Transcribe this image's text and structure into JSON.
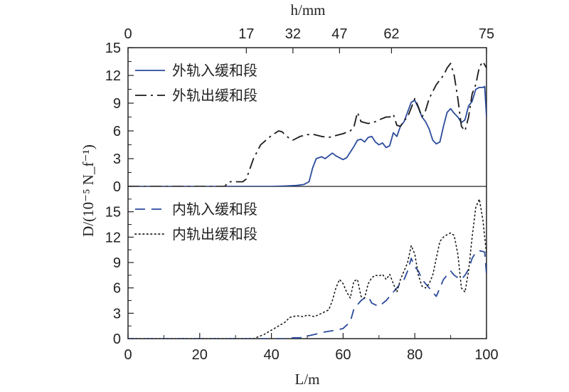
{
  "chart_data": {
    "type": "line",
    "ylabel": "D/(10⁻⁵ N_f⁻¹)",
    "top_axis": {
      "label": "h/mm",
      "ticks": [
        {
          "label": "0",
          "at_L": 0
        },
        {
          "label": "17",
          "at_L": 33
        },
        {
          "label": "32",
          "at_L": 46
        },
        {
          "label": "47",
          "at_L": 59
        },
        {
          "label": "62",
          "at_L": 73.5
        },
        {
          "label": "75",
          "at_L": 100
        }
      ]
    },
    "x_axis": {
      "label": "L/m",
      "range": [
        0,
        100
      ],
      "ticks": [
        "0",
        "20",
        "40",
        "60",
        "80",
        "100"
      ]
    },
    "panels": [
      {
        "position": "upper",
        "ylim": [
          0,
          15
        ],
        "yticks": [
          "0",
          "3",
          "6",
          "9",
          "12",
          "15"
        ],
        "legend_position": "top-left",
        "series": [
          {
            "name": "外轨入缓和段",
            "color": "#2a4a9c",
            "style": "solid",
            "points": [
              [
                0,
                0
              ],
              [
                20,
                0
              ],
              [
                40,
                0
              ],
              [
                44,
                0.05
              ],
              [
                47,
                0.1
              ],
              [
                49,
                0.2
              ],
              [
                50.5,
                0.5
              ],
              [
                51.5,
                2.0
              ],
              [
                52.5,
                3.0
              ],
              [
                54,
                3.2
              ],
              [
                55,
                3.0
              ],
              [
                57,
                3.6
              ],
              [
                58,
                3.3
              ],
              [
                60,
                2.9
              ],
              [
                61,
                3.1
              ],
              [
                63,
                4.3
              ],
              [
                64,
                5.0
              ],
              [
                65,
                5.1
              ],
              [
                66,
                4.8
              ],
              [
                67,
                5.3
              ],
              [
                68,
                5.4
              ],
              [
                69,
                4.8
              ],
              [
                70,
                4.5
              ],
              [
                71,
                4.7
              ],
              [
                72,
                4.2
              ],
              [
                73,
                4.4
              ],
              [
                74,
                5.8
              ],
              [
                75,
                5.4
              ],
              [
                76,
                6.5
              ],
              [
                77,
                7.0
              ],
              [
                79,
                9.1
              ],
              [
                80,
                9.3
              ],
              [
                81,
                8.5
              ],
              [
                82,
                7.5
              ],
              [
                83,
                7.0
              ],
              [
                84,
                6.2
              ],
              [
                85,
                5.0
              ],
              [
                86,
                4.6
              ],
              [
                87,
                4.8
              ],
              [
                88,
                6.5
              ],
              [
                89,
                8.0
              ],
              [
                90,
                8.4
              ],
              [
                91,
                7.9
              ],
              [
                92,
                7.5
              ],
              [
                93,
                6.9
              ],
              [
                94,
                7.2
              ],
              [
                95,
                8.7
              ],
              [
                96,
                9.2
              ],
              [
                97,
                10.5
              ],
              [
                98,
                10.7
              ],
              [
                99,
                10.7
              ],
              [
                99.5,
                10.8
              ],
              [
                100,
                7.5
              ]
            ]
          },
          {
            "name": "外轨出缓和段",
            "color": "#1a1a1a",
            "style": "dashdot",
            "points": [
              [
                0,
                0
              ],
              [
                27,
                0
              ],
              [
                28,
                0.5
              ],
              [
                32,
                0.5
              ],
              [
                33,
                0.8
              ],
              [
                35,
                3.0
              ],
              [
                37,
                4.5
              ],
              [
                40,
                5.5
              ],
              [
                42,
                6.0
              ],
              [
                43,
                5.9
              ],
              [
                44,
                5.5
              ],
              [
                45,
                5.2
              ],
              [
                46,
                5.0
              ],
              [
                48,
                5.4
              ],
              [
                50,
                5.6
              ],
              [
                52,
                5.6
              ],
              [
                54,
                5.4
              ],
              [
                56,
                5.3
              ],
              [
                58,
                5.5
              ],
              [
                60,
                5.7
              ],
              [
                62,
                6.0
              ],
              [
                63,
                6.4
              ],
              [
                64,
                8.0
              ],
              [
                65,
                7.0
              ],
              [
                67,
                6.8
              ],
              [
                69,
                7.0
              ],
              [
                70,
                7.2
              ],
              [
                72,
                7.5
              ],
              [
                73,
                7.5
              ],
              [
                74,
                7.8
              ],
              [
                75,
                6.6
              ],
              [
                76,
                6.5
              ],
              [
                77,
                7.1
              ],
              [
                78,
                7.5
              ],
              [
                79,
                8.5
              ],
              [
                80,
                9.5
              ],
              [
                81,
                8.6
              ],
              [
                82,
                7.5
              ],
              [
                83,
                8.2
              ],
              [
                84,
                9.5
              ],
              [
                86,
                11.0
              ],
              [
                88,
                12.0
              ],
              [
                89,
                12.8
              ],
              [
                90,
                13.3
              ],
              [
                91,
                12.0
              ],
              [
                92,
                9.5
              ],
              [
                93,
                6.5
              ],
              [
                94,
                6.0
              ],
              [
                95,
                7.5
              ],
              [
                96,
                10.0
              ],
              [
                97,
                11.0
              ],
              [
                98,
                12.9
              ],
              [
                99,
                13.5
              ],
              [
                100,
                12.8
              ]
            ]
          }
        ]
      },
      {
        "position": "lower",
        "ylim": [
          0,
          18
        ],
        "yticks": [
          "0",
          "3",
          "6",
          "9",
          "12",
          "15"
        ],
        "legend_position": "top-left",
        "series": [
          {
            "name": "内轨入缓和段",
            "color": "#2a4a9c",
            "style": "dashed",
            "points": [
              [
                0,
                0
              ],
              [
                40,
                0
              ],
              [
                45,
                0
              ],
              [
                46,
                0.1
              ],
              [
                48,
                0.1
              ],
              [
                50,
                0.3
              ],
              [
                52,
                0.5
              ],
              [
                55,
                0.8
              ],
              [
                58,
                1.0
              ],
              [
                60,
                1.2
              ],
              [
                62,
                2.0
              ],
              [
                63,
                3.5
              ],
              [
                65,
                4.5
              ],
              [
                66,
                4.8
              ],
              [
                67,
                5.0
              ],
              [
                68,
                4.2
              ],
              [
                70,
                3.8
              ],
              [
                72,
                4.5
              ],
              [
                74,
                5.5
              ],
              [
                76,
                6.5
              ],
              [
                77,
                7.0
              ],
              [
                78,
                8.0
              ],
              [
                79,
                9.5
              ],
              [
                80,
                8.5
              ],
              [
                81,
                8.0
              ],
              [
                82,
                7.0
              ],
              [
                83,
                6.5
              ],
              [
                84,
                6.0
              ],
              [
                85,
                5.5
              ],
              [
                86,
                5.0
              ],
              [
                87,
                6.0
              ],
              [
                88,
                7.0
              ],
              [
                89,
                7.5
              ],
              [
                90,
                8.0
              ],
              [
                91,
                7.5
              ],
              [
                92,
                7.2
              ],
              [
                93,
                7.0
              ],
              [
                94,
                7.5
              ],
              [
                95,
                8.2
              ],
              [
                96,
                9.5
              ],
              [
                97,
                10.2
              ],
              [
                98,
                10.4
              ],
              [
                99,
                10.3
              ],
              [
                99.5,
                10.2
              ],
              [
                100,
                7.6
              ]
            ]
          },
          {
            "name": "内轨出缓和段",
            "color": "#1a1a1a",
            "style": "dotted",
            "points": [
              [
                0,
                0
              ],
              [
                30,
                0
              ],
              [
                35,
                0
              ],
              [
                38,
                0.5
              ],
              [
                40,
                1.0
              ],
              [
                42,
                1.5
              ],
              [
                44,
                2.0
              ],
              [
                45,
                2.5
              ],
              [
                47,
                2.7
              ],
              [
                49,
                2.6
              ],
              [
                50,
                2.8
              ],
              [
                52,
                2.6
              ],
              [
                54,
                3.0
              ],
              [
                56,
                3.4
              ],
              [
                57,
                4.5
              ],
              [
                58,
                6.0
              ],
              [
                59,
                7.0
              ],
              [
                60,
                6.5
              ],
              [
                61,
                5.5
              ],
              [
                62,
                4.8
              ],
              [
                63,
                6.8
              ],
              [
                64,
                7.0
              ],
              [
                65,
                5.0
              ],
              [
                66,
                4.8
              ],
              [
                67,
                6.5
              ],
              [
                68,
                7.2
              ],
              [
                69,
                7.5
              ],
              [
                70,
                7.4
              ],
              [
                71,
                7.6
              ],
              [
                72,
                7.0
              ],
              [
                73,
                7.6
              ],
              [
                74,
                6.5
              ],
              [
                75,
                5.5
              ],
              [
                76,
                7.0
              ],
              [
                77,
                8.0
              ],
              [
                78,
                9.0
              ],
              [
                79,
                11.0
              ],
              [
                80,
                10.0
              ],
              [
                81,
                7.5
              ],
              [
                82,
                6.2
              ],
              [
                83,
                6.0
              ],
              [
                84,
                6.5
              ],
              [
                85,
                7.5
              ],
              [
                86,
                9.5
              ],
              [
                87,
                11.5
              ],
              [
                88,
                12.0
              ],
              [
                89,
                12.3
              ],
              [
                90,
                12.5
              ],
              [
                91,
                12.2
              ],
              [
                92,
                10.0
              ],
              [
                93,
                6.0
              ],
              [
                94,
                5.5
              ],
              [
                95,
                8.0
              ],
              [
                96,
                12.0
              ],
              [
                97,
                15.5
              ],
              [
                98,
                16.5
              ],
              [
                99,
                14.0
              ],
              [
                100,
                10.0
              ]
            ]
          }
        ]
      }
    ]
  }
}
